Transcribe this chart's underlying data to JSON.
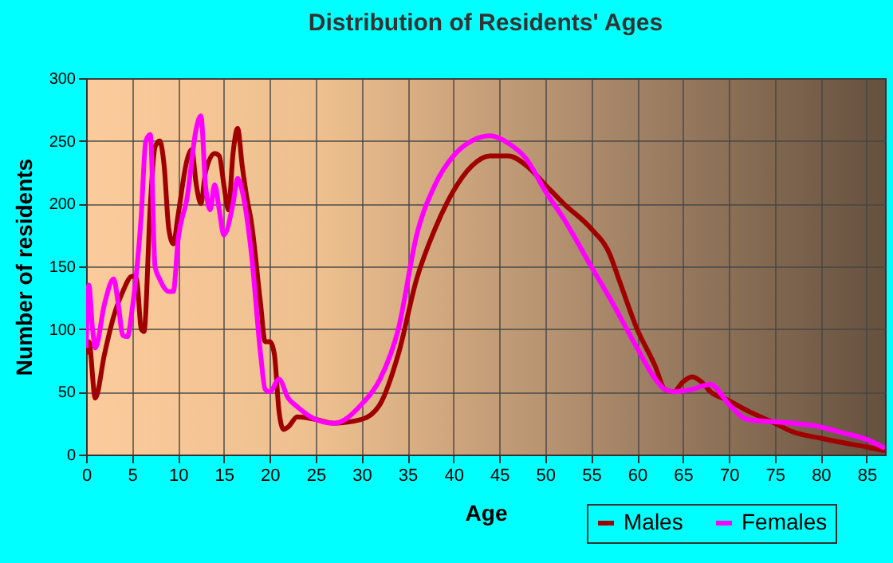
{
  "chart_data": {
    "type": "line",
    "title": "Distribution of Residents' Ages",
    "xlabel": "Age",
    "ylabel": "Number of residents",
    "xlim": [
      0,
      87
    ],
    "xticks": [
      0,
      5,
      10,
      15,
      20,
      25,
      30,
      35,
      40,
      45,
      50,
      55,
      60,
      65,
      70,
      75,
      80,
      85
    ],
    "ylim": [
      0,
      300
    ],
    "yticks": [
      0,
      50,
      100,
      150,
      200,
      250,
      300
    ],
    "grid": true,
    "legend": "bottom right",
    "marker": "none",
    "line_style": "solid",
    "series": [
      {
        "name": "Males",
        "color": "#a00000",
        "x": [
          0,
          0.3,
          1,
          2,
          3,
          4,
          5,
          5.5,
          6,
          6.3,
          7,
          7.5,
          8,
          8.5,
          9,
          9.5,
          10,
          11,
          11.5,
          12,
          12.5,
          13,
          14,
          14.5,
          15,
          15.5,
          16,
          16.5,
          17,
          17.5,
          18,
          19,
          19.5,
          20,
          20.5,
          21,
          21.5,
          22,
          23,
          25,
          27,
          30,
          32,
          34,
          36,
          38,
          40,
          42,
          44,
          46,
          48,
          50,
          52,
          55,
          57,
          58,
          60,
          62,
          63,
          64,
          65,
          66,
          67,
          68,
          70,
          72,
          75,
          77,
          80,
          82,
          85,
          87
        ],
        "values": [
          80,
          90,
          45,
          80,
          110,
          130,
          142,
          140,
          100,
          98,
          200,
          245,
          250,
          230,
          180,
          168,
          190,
          235,
          243,
          215,
          200,
          225,
          240,
          238,
          215,
          195,
          240,
          260,
          230,
          205,
          185,
          120,
          90,
          90,
          80,
          35,
          20,
          22,
          30,
          28,
          25,
          28,
          40,
          80,
          140,
          180,
          210,
          230,
          238,
          238,
          230,
          215,
          200,
          180,
          160,
          140,
          100,
          70,
          52,
          50,
          58,
          62,
          58,
          50,
          43,
          35,
          25,
          18,
          13,
          10,
          6,
          3
        ]
      },
      {
        "name": "Females",
        "color": "#ff00ff",
        "x": [
          0,
          0.3,
          0.7,
          1,
          2,
          3,
          3.5,
          4,
          4.5,
          5,
          6,
          6.5,
          7,
          7.5,
          8,
          9,
          9.5,
          10,
          11,
          12,
          12.5,
          13,
          13.5,
          14,
          14.5,
          15,
          16,
          16.5,
          17,
          18,
          19,
          19.5,
          20,
          21,
          22,
          23,
          25,
          27,
          30,
          32,
          34,
          36,
          38,
          40,
          42,
          44,
          46,
          48,
          50,
          52,
          55,
          57,
          60,
          62,
          63,
          64,
          66,
          68,
          70,
          72,
          75,
          77,
          80,
          82,
          85,
          87
        ],
        "values": [
          85,
          135,
          100,
          85,
          120,
          140,
          120,
          95,
          94,
          115,
          190,
          250,
          255,
          150,
          140,
          130,
          130,
          170,
          205,
          260,
          270,
          215,
          195,
          215,
          195,
          175,
          200,
          220,
          210,
          160,
          80,
          52,
          50,
          60,
          45,
          38,
          28,
          25,
          40,
          60,
          100,
          175,
          215,
          238,
          250,
          254,
          248,
          235,
          210,
          188,
          150,
          125,
          85,
          60,
          52,
          50,
          52,
          56,
          40,
          28,
          26,
          25,
          22,
          18,
          12,
          5
        ]
      }
    ]
  }
}
